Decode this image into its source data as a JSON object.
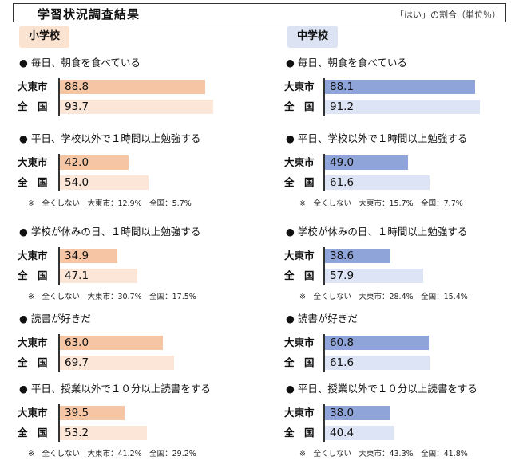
{
  "header": {
    "title": "学習状況調査結果",
    "unit_note": "「はい」の割合（単位％）"
  },
  "chart_data": [
    {
      "type": "bar",
      "orientation": "horizontal",
      "title": "小学校",
      "xlim": [
        0,
        100
      ],
      "colors": {
        "city": "#f6c6a4",
        "national": "#fbe6d8"
      },
      "groups": [
        {
          "label": "● 毎日、朝食を食べている",
          "rows": [
            {
              "label": "大東市",
              "value": 88.8
            },
            {
              "label": "全　国",
              "value": 93.7
            }
          ],
          "note": ""
        },
        {
          "label": "● 平日、学校以外で１時間以上勉強する",
          "rows": [
            {
              "label": "大東市",
              "value": 42.0
            },
            {
              "label": "全　国",
              "value": 54.0
            }
          ],
          "note": "※　全くしない　大東市：12.9%　全国：5.7%"
        },
        {
          "label": "● 学校が休みの日、１時間以上勉強する",
          "rows": [
            {
              "label": "大東市",
              "value": 34.9
            },
            {
              "label": "全　国",
              "value": 47.1
            }
          ],
          "note": "※　全くしない　大東市：30.7%　全国：17.5%"
        },
        {
          "label": "● 読書が好きだ",
          "rows": [
            {
              "label": "大東市",
              "value": 63.0
            },
            {
              "label": "全　国",
              "value": 69.7
            }
          ],
          "note": ""
        },
        {
          "label": "● 平日、授業以外で１０分以上読書をする",
          "rows": [
            {
              "label": "大東市",
              "value": 39.5
            },
            {
              "label": "全　国",
              "value": 53.2
            }
          ],
          "note": "※　全くしない　大東市：41.2%　全国：29.2%"
        }
      ]
    },
    {
      "type": "bar",
      "orientation": "horizontal",
      "title": "中学校",
      "xlim": [
        0,
        100
      ],
      "colors": {
        "city": "#8fa5da",
        "national": "#dce4f5"
      },
      "groups": [
        {
          "label": "● 毎日、朝食を食べている",
          "rows": [
            {
              "label": "大東市",
              "value": 88.1
            },
            {
              "label": "全　国",
              "value": 91.2
            }
          ],
          "note": ""
        },
        {
          "label": "● 平日、学校以外で１時間以上勉強する",
          "rows": [
            {
              "label": "大東市",
              "value": 49.0
            },
            {
              "label": "全　国",
              "value": 61.6
            }
          ],
          "note": "※　全くしない　大東市：15.7%　全国：7.7%"
        },
        {
          "label": "● 学校が休みの日、１時間以上勉強する",
          "rows": [
            {
              "label": "大東市",
              "value": 38.6
            },
            {
              "label": "全　国",
              "value": 57.9
            }
          ],
          "note": "※　全くしない　大東市：28.4%　全国：15.4%"
        },
        {
          "label": "● 読書が好きだ",
          "rows": [
            {
              "label": "大東市",
              "value": 60.8
            },
            {
              "label": "全　国",
              "value": 61.6
            }
          ],
          "note": ""
        },
        {
          "label": "● 平日、授業以外で１０分以上読書をする",
          "rows": [
            {
              "label": "大東市",
              "value": 38.0
            },
            {
              "label": "全　国",
              "value": 40.4
            }
          ],
          "note": "※　全くしない　大東市：43.3%　全国：41.8%"
        }
      ]
    }
  ]
}
